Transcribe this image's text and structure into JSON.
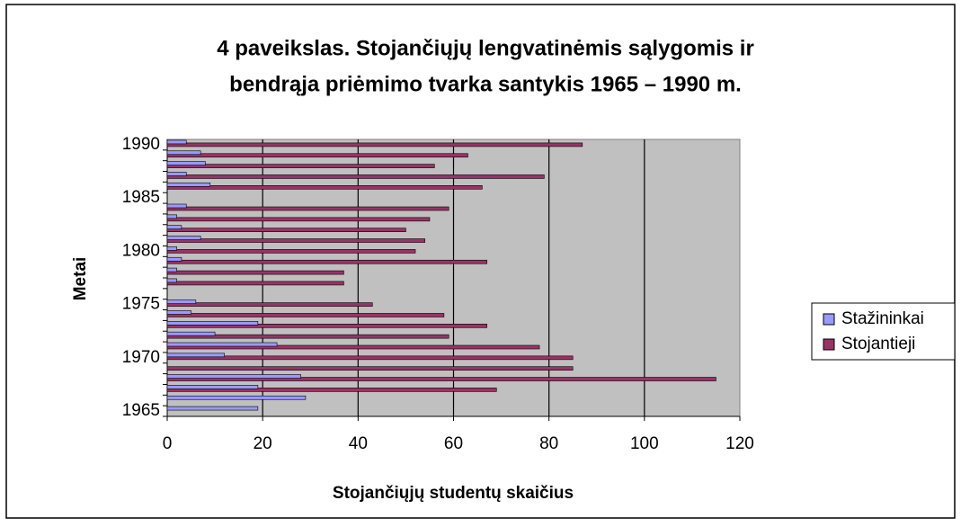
{
  "chart_data": {
    "type": "bar",
    "orientation": "horizontal",
    "title": [
      "4 paveikslas. Stojančiųjų lengvatinėmis sąlygomis ir",
      "bendrąja priėmimo tvarka santykis 1965 – 1990 m."
    ],
    "xlabel": "Stojančiųjų studentų skaičius",
    "ylabel": "Metai",
    "categories": [
      "1965",
      null,
      null,
      null,
      null,
      "1970",
      null,
      null,
      null,
      null,
      "1975",
      null,
      null,
      null,
      null,
      "1980",
      null,
      null,
      null,
      null,
      "1985",
      null,
      null,
      null,
      null,
      "1990"
    ],
    "series": [
      {
        "name": "Stažininkai",
        "color": "#9999ff",
        "values": [
          19,
          29,
          19,
          28,
          null,
          12,
          23,
          10,
          19,
          5,
          6,
          null,
          2,
          2,
          3,
          2,
          7,
          3,
          2,
          4,
          null,
          9,
          4,
          8,
          7,
          4
        ]
      },
      {
        "name": "Stojantieji",
        "color": "#993366",
        "values": [
          null,
          null,
          69,
          115,
          85,
          85,
          78,
          59,
          67,
          58,
          43,
          null,
          37,
          37,
          67,
          52,
          54,
          50,
          55,
          59,
          null,
          66,
          79,
          56,
          63,
          87
        ]
      }
    ],
    "xlim": [
      0,
      120
    ],
    "xticks": [
      0,
      20,
      40,
      60,
      80,
      100,
      120
    ],
    "grid": true,
    "legend": "right"
  }
}
